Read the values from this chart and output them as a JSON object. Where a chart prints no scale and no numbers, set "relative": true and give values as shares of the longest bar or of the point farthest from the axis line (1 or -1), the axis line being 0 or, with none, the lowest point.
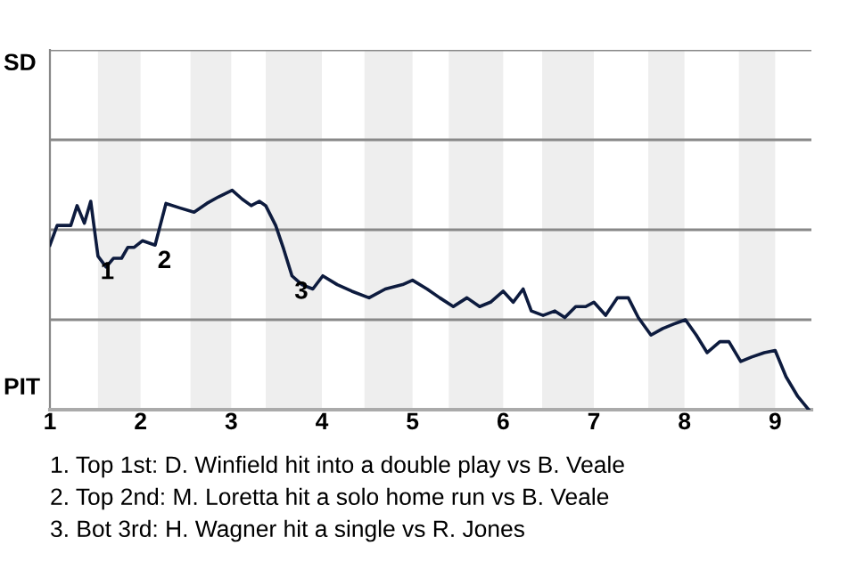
{
  "chart_data": {
    "type": "line",
    "relative": true,
    "x": [
      1.0,
      1.08,
      1.15,
      1.23,
      1.3,
      1.38,
      1.45,
      1.53,
      1.62,
      1.7,
      1.79,
      1.86,
      1.93,
      2.02,
      2.16,
      2.28,
      2.43,
      2.59,
      2.73,
      2.86,
      3.01,
      3.12,
      3.22,
      3.31,
      3.38,
      3.49,
      3.58,
      3.67,
      3.78,
      3.9,
      4.01,
      4.17,
      4.33,
      4.52,
      4.7,
      4.89,
      5.0,
      5.16,
      5.3,
      5.45,
      5.6,
      5.74,
      5.86,
      6.0,
      6.11,
      6.22,
      6.31,
      6.44,
      6.57,
      6.68,
      6.8,
      6.91,
      7.0,
      7.13,
      7.26,
      7.38,
      7.49,
      7.63,
      7.76,
      7.88,
      8.01,
      8.13,
      8.25,
      8.39,
      8.49,
      8.62,
      8.74,
      8.88,
      9.0,
      9.12,
      9.25,
      9.37
    ],
    "series": [
      {
        "color": "#0d1b3e",
        "values": [
          0.75,
          0.84,
          0.84,
          0.84,
          0.93,
          0.85,
          0.95,
          0.7,
          0.65,
          0.69,
          0.69,
          0.74,
          0.74,
          0.77,
          0.75,
          0.94,
          0.92,
          0.9,
          0.94,
          0.97,
          1,
          0.96,
          0.93,
          0.95,
          0.93,
          0.84,
          0.73,
          0.61,
          0.57,
          0.55,
          0.61,
          0.57,
          0.54,
          0.51,
          0.55,
          0.57,
          0.59,
          0.55,
          0.51,
          0.47,
          0.51,
          0.47,
          0.49,
          0.54,
          0.49,
          0.55,
          0.45,
          0.43,
          0.45,
          0.42,
          0.47,
          0.47,
          0.49,
          0.43,
          0.51,
          0.51,
          0.42,
          0.34,
          0.37,
          0.39,
          0.41,
          0.34,
          0.26,
          0.31,
          0.31,
          0.22,
          0.24,
          0.26,
          0.27,
          0.15,
          0.06,
          0
        ]
      }
    ],
    "xlim": [
      1,
      9.4
    ],
    "xticks": [
      1,
      2,
      3,
      4,
      5,
      6,
      7,
      8,
      9
    ],
    "ref_lines": [
      {
        "axis": "y",
        "value": 0.41,
        "color": "#888888"
      },
      {
        "axis": "y",
        "value": 0.82,
        "color": "#888888"
      },
      {
        "axis": "y",
        "value": 1.23,
        "color": "#888888"
      },
      {
        "axis": "y",
        "value": 1.64,
        "color": "#888888"
      }
    ],
    "bands": [
      {
        "axis": "x",
        "from": 1.53,
        "to": 2,
        "color": "#eeeeee"
      },
      {
        "axis": "x",
        "from": 2.55,
        "to": 3,
        "color": "#eeeeee"
      },
      {
        "axis": "x",
        "from": 3.38,
        "to": 4,
        "color": "#eeeeee"
      },
      {
        "axis": "x",
        "from": 4.47,
        "to": 5,
        "color": "#eeeeee"
      },
      {
        "axis": "x",
        "from": 5.4,
        "to": 6,
        "color": "#eeeeee"
      },
      {
        "axis": "x",
        "from": 6.43,
        "to": 7,
        "color": "#eeeeee"
      },
      {
        "axis": "x",
        "from": 7.6,
        "to": 8,
        "color": "#eeeeee"
      },
      {
        "axis": "x",
        "from": 8.6,
        "to": 9,
        "color": "#eeeeee"
      }
    ],
    "annotations": [
      "SD",
      "PIT",
      {
        "text": "1",
        "x": 1.53,
        "y": 0.7
      },
      {
        "text": "2",
        "x": 2.16,
        "y": 0.75
      },
      {
        "text": "3",
        "x": 3.67,
        "y": 0.61
      },
      "1. Top 1st: D. Winfield hit into a double play vs B. Veale",
      "2. Top 2nd: M. Loretta hit a solo home run vs B. Veale",
      "3. Bot 3rd: H. Wagner hit a single vs R. Jones"
    ],
    "marker": "none",
    "line_style": "solid"
  }
}
